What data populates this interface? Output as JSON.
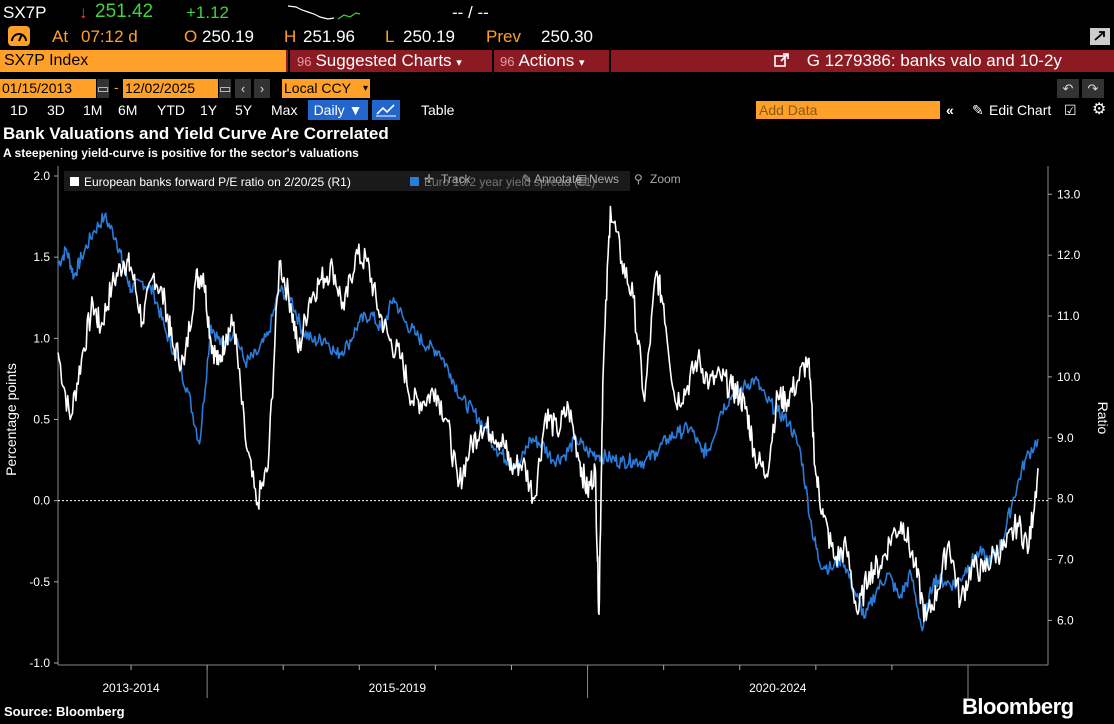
{
  "quote": {
    "ticker": "SX7P",
    "arrow": "↓",
    "last": "251.42",
    "change": "+1.12",
    "bid_ask": "-- / --",
    "at_label": "At",
    "time": "07:12 d",
    "open_label": "O",
    "open": "250.19",
    "high_label": "H",
    "high": "251.96",
    "low_label": "L",
    "low": "250.19",
    "prev_label": "Prev",
    "prev": "250.30"
  },
  "command_bar": {
    "security": "SX7P Index",
    "suggested_charts": "Suggested Charts",
    "actions": "Actions",
    "menu_num": "96",
    "chart_id": "G 1279386: banks valo and 10-2y"
  },
  "date_bar": {
    "start": "01/15/2013",
    "end": "12/02/2025",
    "currency": "Local CCY"
  },
  "period_bar": {
    "periods": [
      "1D",
      "3D",
      "1M",
      "6M",
      "YTD",
      "1Y",
      "5Y",
      "Max"
    ],
    "frequency": "Daily ▼",
    "table": "Table",
    "add_data_placeholder": "Add Data",
    "edit_chart": "Edit Chart"
  },
  "toolbar": {
    "track": "Track",
    "annotate": "Annotate",
    "news": "News",
    "zoom": "Zoom"
  },
  "footer": {
    "source": "Source: Bloomberg",
    "brand": "Bloomberg"
  },
  "colors": {
    "accent_amber": "#ffa028",
    "command_red": "#8b1a22",
    "series_blue": "#2b7bd9",
    "series_white": "#ffffff",
    "up_green": "#3ed43e",
    "down_red": "#ff3b3b"
  },
  "chart_data": {
    "type": "line",
    "title": "Bank Valuations and Yield Curve Are Correlated",
    "subtitle": "A steepening yield-curve is positive for the sector's valuations",
    "ylabel_left": "Percentage points",
    "ylabel_right": "Ratio",
    "ylim_left": [
      -1.0,
      2.0
    ],
    "ylim_right": [
      5.3,
      13.3
    ],
    "left_ticks": [
      "2.0",
      "1.5",
      "1.0",
      "0.5",
      "0.0",
      "-0.5",
      "-1.0"
    ],
    "right_ticks": [
      "13.0",
      "12.0",
      "11.0",
      "10.0",
      "9.0",
      "8.0",
      "7.0",
      "6.0"
    ],
    "x_range": [
      2013.04,
      2025.92
    ],
    "x_labels": [
      "2013-2014",
      "2015-2019",
      "2020-2024"
    ],
    "grid": false,
    "zero_line": true,
    "legend_position": "top-left",
    "series": [
      {
        "name": "European banks forward P/E ratio on 2/20/25 (R1)",
        "axis": "right",
        "color": "#ffffff",
        "x": [
          2013.04,
          2013.2,
          2013.35,
          2013.5,
          2013.6,
          2013.75,
          2013.9,
          2014.0,
          2014.15,
          2014.3,
          2014.45,
          2014.55,
          2014.7,
          2014.85,
          2014.95,
          2015.05,
          2015.15,
          2015.25,
          2015.35,
          2015.5,
          2015.65,
          2015.8,
          2015.95,
          2016.1,
          2016.2,
          2016.35,
          2016.5,
          2016.65,
          2016.8,
          2016.95,
          2017.1,
          2017.25,
          2017.4,
          2017.55,
          2017.7,
          2017.85,
          2018.0,
          2018.15,
          2018.3,
          2018.45,
          2018.6,
          2018.75,
          2018.9,
          2019.0,
          2019.15,
          2019.3,
          2019.45,
          2019.6,
          2019.75,
          2019.9,
          2020.0,
          2020.1,
          2020.15,
          2020.2,
          2020.3,
          2020.45,
          2020.6,
          2020.75,
          2020.9,
          2021.0,
          2021.15,
          2021.3,
          2021.45,
          2021.6,
          2021.75,
          2021.9,
          2022.0,
          2022.1,
          2022.2,
          2022.35,
          2022.5,
          2022.6,
          2022.75,
          2022.9,
          2023.0,
          2023.1,
          2023.25,
          2023.4,
          2023.55,
          2023.7,
          2023.85,
          2024.0,
          2024.15,
          2024.3,
          2024.45,
          2024.6,
          2024.75,
          2024.9,
          2025.05,
          2025.2,
          2025.35,
          2025.5,
          2025.65,
          2025.8,
          2025.92
        ],
        "y": [
          10.4,
          9.3,
          10.3,
          11.2,
          10.8,
          11.5,
          11.9,
          11.8,
          10.9,
          11.7,
          11.2,
          10.5,
          10.2,
          11.6,
          11.7,
          10.6,
          10.2,
          10.7,
          10.9,
          9.0,
          7.9,
          8.5,
          11.9,
          11.2,
          10.4,
          11.3,
          11.6,
          11.8,
          11.1,
          12.0,
          11.9,
          11.1,
          10.6,
          10.3,
          9.6,
          9.6,
          9.8,
          9.3,
          8.2,
          8.8,
          9.2,
          9.1,
          8.9,
          8.5,
          8.6,
          8.0,
          9.4,
          9.1,
          9.5,
          8.6,
          8.1,
          8.5,
          6.1,
          9.9,
          12.8,
          11.9,
          11.3,
          9.6,
          11.7,
          11.2,
          9.6,
          9.8,
          10.3,
          9.9,
          10.0,
          9.8,
          9.7,
          9.4,
          8.7,
          8.4,
          9.7,
          9.6,
          9.9,
          10.3,
          8.4,
          7.7,
          7.0,
          7.2,
          6.1,
          6.8,
          6.9,
          7.4,
          7.6,
          6.9,
          6.0,
          6.5,
          7.3,
          6.3,
          6.9,
          6.8,
          7.1,
          7.2,
          7.6,
          7.2,
          8.5
        ]
      },
      {
        "name": "Euro 10/2 year yield spread (L1)",
        "axis": "left",
        "color": "#2b7bd9",
        "x": [
          2013.04,
          2013.15,
          2013.25,
          2013.35,
          2013.5,
          2013.65,
          2013.8,
          2013.9,
          2014.0,
          2014.15,
          2014.3,
          2014.45,
          2014.6,
          2014.75,
          2014.9,
          2015.05,
          2015.2,
          2015.35,
          2015.5,
          2015.65,
          2015.8,
          2015.95,
          2016.1,
          2016.25,
          2016.4,
          2016.55,
          2016.7,
          2016.85,
          2017.0,
          2017.15,
          2017.3,
          2017.45,
          2017.6,
          2017.75,
          2017.9,
          2018.05,
          2018.2,
          2018.35,
          2018.5,
          2018.65,
          2018.8,
          2018.95,
          2019.1,
          2019.25,
          2019.4,
          2019.55,
          2019.7,
          2019.85,
          2020.0,
          2020.15,
          2020.3,
          2020.45,
          2020.6,
          2020.75,
          2020.9,
          2021.05,
          2021.2,
          2021.35,
          2021.5,
          2021.6,
          2021.75,
          2021.9,
          2022.05,
          2022.2,
          2022.35,
          2022.5,
          2022.65,
          2022.8,
          2022.95,
          2023.05,
          2023.2,
          2023.35,
          2023.5,
          2023.65,
          2023.8,
          2023.95,
          2024.1,
          2024.25,
          2024.4,
          2024.55,
          2024.7,
          2024.85,
          2025.0,
          2025.15,
          2025.3,
          2025.45,
          2025.6,
          2025.75,
          2025.92
        ],
        "y": [
          1.45,
          1.55,
          1.38,
          1.5,
          1.65,
          1.75,
          1.62,
          1.45,
          1.3,
          1.35,
          1.28,
          1.05,
          0.88,
          0.67,
          0.35,
          1.08,
          0.95,
          1.05,
          0.85,
          0.9,
          1.02,
          1.3,
          1.25,
          1.05,
          0.98,
          1.0,
          0.9,
          0.96,
          1.1,
          1.15,
          1.05,
          1.25,
          1.1,
          1.02,
          0.95,
          0.92,
          0.78,
          0.62,
          0.55,
          0.45,
          0.32,
          0.25,
          0.22,
          0.38,
          0.35,
          0.25,
          0.28,
          0.38,
          0.3,
          0.28,
          0.26,
          0.24,
          0.25,
          0.24,
          0.3,
          0.38,
          0.42,
          0.45,
          0.3,
          0.32,
          0.55,
          0.65,
          0.7,
          0.75,
          0.62,
          0.55,
          0.48,
          0.3,
          -0.18,
          -0.38,
          -0.42,
          -0.35,
          -0.55,
          -0.72,
          -0.55,
          -0.45,
          -0.6,
          -0.45,
          -0.8,
          -0.48,
          -0.5,
          -0.52,
          -0.4,
          -0.32,
          -0.38,
          -0.25,
          0.02,
          0.25,
          0.38
        ]
      }
    ]
  }
}
